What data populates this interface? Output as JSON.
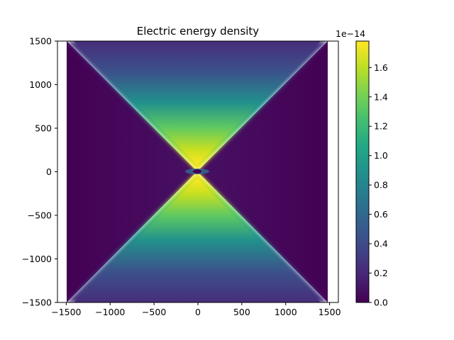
{
  "chart_data": {
    "type": "heatmap",
    "title": "Electric energy density",
    "xlabel": "",
    "ylabel": "",
    "xlim": [
      -1600,
      1600
    ],
    "ylim": [
      -1500,
      1500
    ],
    "data_extent": {
      "x": [
        -1500,
        1500
      ],
      "y": [
        -1500,
        1500
      ]
    },
    "x_ticks": [
      -1500,
      -1000,
      -500,
      0,
      500,
      1000,
      1500
    ],
    "x_tick_labels": [
      "−1500",
      "−1000",
      "−500",
      "0",
      "500",
      "1000",
      "1500"
    ],
    "y_ticks": [
      -1500,
      -1000,
      -500,
      0,
      500,
      1000,
      1500
    ],
    "y_tick_labels": [
      "−1500",
      "−1000",
      "−500",
      "0",
      "500",
      "1000",
      "1500"
    ],
    "colormap": "viridis",
    "colorbar": {
      "range": [
        0,
        1.78
      ],
      "ticks": [
        0.0,
        0.2,
        0.4,
        0.6,
        0.8,
        1.0,
        1.2,
        1.4,
        1.6
      ],
      "tick_labels": [
        "0.0",
        "0.2",
        "0.4",
        "0.6",
        "0.8",
        "1.0",
        "1.2",
        "1.4",
        "1.6"
      ],
      "offset_text": "1e−14"
    },
    "field_description": "bright double cone (hourglass) along the vertical axis bounded by the diagonals |y| = |x|; maximum near the origin, decreasing with |y|; dark outside the cone",
    "grid": false
  }
}
